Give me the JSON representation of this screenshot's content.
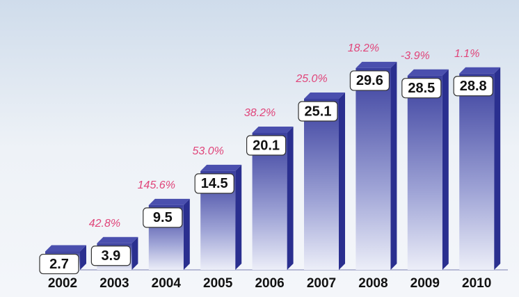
{
  "chart_data": {
    "type": "bar3d",
    "categories": [
      "2002",
      "2003",
      "2004",
      "2005",
      "2006",
      "2007",
      "2008",
      "2009",
      "2010"
    ],
    "values": [
      2.7,
      3.9,
      9.5,
      14.5,
      20.1,
      25.1,
      29.6,
      28.5,
      28.8
    ],
    "annotations": [
      null,
      "42.8%",
      "145.6%",
      "53.0%",
      "38.2%",
      "25.0%",
      "18.2%",
      "-3.9%",
      "1.1%"
    ],
    "color": "#2a2f8f"
  }
}
